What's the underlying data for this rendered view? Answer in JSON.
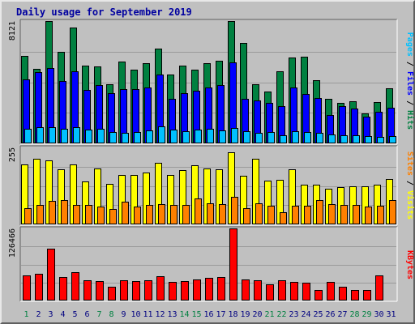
{
  "chart_data": {
    "type": "bar",
    "title": "Daily usage for September 2019",
    "x": [
      "1",
      "2",
      "3",
      "4",
      "5",
      "6",
      "7",
      "8",
      "9",
      "10",
      "11",
      "12",
      "13",
      "14",
      "15",
      "16",
      "17",
      "18",
      "19",
      "20",
      "21",
      "22",
      "23",
      "24",
      "25",
      "26",
      "27",
      "28",
      "29",
      "30",
      "31"
    ],
    "weekend_days": [
      "1",
      "7",
      "8",
      "14",
      "15",
      "21",
      "22",
      "28",
      "29"
    ],
    "colors": {
      "hits": "#008040",
      "files": "#0000ff",
      "pages": "#00c0ff",
      "visits": "#ffff00",
      "sites": "#ff8000",
      "kbytes": "#ff0000",
      "weekday_label": "#000080",
      "weekend_label": "#008040"
    },
    "panels": [
      {
        "id": "hits-files-pages",
        "max_label": "8121",
        "ymax": 8121,
        "legend": [
          {
            "label": "Pages",
            "color": "#00c0ff"
          },
          {
            "label": " / ",
            "color": "#000000"
          },
          {
            "label": "Files",
            "color": "#0000ff"
          },
          {
            "label": " / ",
            "color": "#000000"
          },
          {
            "label": "Hits",
            "color": "#008040"
          }
        ],
        "series": [
          {
            "name": "Hits",
            "values": [
              5800,
              4950,
              8121,
              6100,
              7700,
              5150,
              5100,
              3900,
              5450,
              4900,
              5300,
              6300,
              4550,
              5150,
              4900,
              5350,
              5500,
              8100,
              6650,
              3900,
              3450,
              4800,
              5700,
              5750,
              4200,
              2950,
              2700,
              2800,
              2000,
              2750,
              3650
            ]
          },
          {
            "name": "Files",
            "values": [
              4250,
              4750,
              5000,
              4150,
              4800,
              3550,
              3850,
              3350,
              3600,
              3600,
              3700,
              4550,
              2950,
              3350,
              3500,
              3700,
              3850,
              5400,
              2950,
              2850,
              2700,
              2450,
              3700,
              3300,
              3000,
              1900,
              2450,
              2300,
              1800,
              2100,
              2350
            ]
          },
          {
            "name": "Pages",
            "values": [
              950,
              1050,
              1100,
              950,
              1050,
              900,
              950,
              750,
              700,
              750,
              850,
              1150,
              900,
              800,
              900,
              950,
              850,
              1000,
              800,
              700,
              750,
              550,
              800,
              750,
              700,
              600,
              550,
              550,
              500,
              450,
              500
            ]
          }
        ]
      },
      {
        "id": "visits-sites",
        "max_label": "255",
        "ymax": 255,
        "legend": [
          {
            "label": "Sites",
            "color": "#ff8000"
          },
          {
            "label": " / ",
            "color": "#000000"
          },
          {
            "label": "Visits",
            "color": "#ffff00"
          }
        ],
        "series": [
          {
            "name": "Visits",
            "values": [
              199,
              218,
              213,
              183,
              199,
              143,
              185,
              135,
              163,
              165,
              172,
              205,
              165,
              181,
              196,
              185,
              182,
              240,
              162,
              218,
              145,
              148,
              183,
              132,
              132,
              118,
              123,
              125,
              127,
              132,
              150
            ]
          },
          {
            "name": "Sites",
            "values": [
              55,
              65,
              79,
              81,
              65,
              64,
              60,
              52,
              74,
              59,
              64,
              66,
              65,
              64,
              86,
              71,
              68,
              92,
              53,
              71,
              61,
              40,
              61,
              62,
              80,
              67,
              65,
              64,
              59,
              61,
              81
            ]
          }
        ]
      },
      {
        "id": "kbytes",
        "max_label": "126466",
        "ymax": 126466,
        "legend": [
          {
            "label": "KBytes",
            "color": "#ff0000"
          }
        ],
        "series": [
          {
            "name": "KBytes",
            "values": [
              43500,
              46500,
              91000,
              40500,
              50000,
              36000,
              34500,
              23500,
              35500,
              34500,
              35000,
              43000,
              32000,
              34500,
              37000,
              40000,
              41000,
              126466,
              37500,
              36000,
              28000,
              35000,
              32000,
              31000,
              18500,
              33000,
              24500,
              18000,
              18500,
              44000,
              0
            ]
          }
        ]
      }
    ]
  }
}
